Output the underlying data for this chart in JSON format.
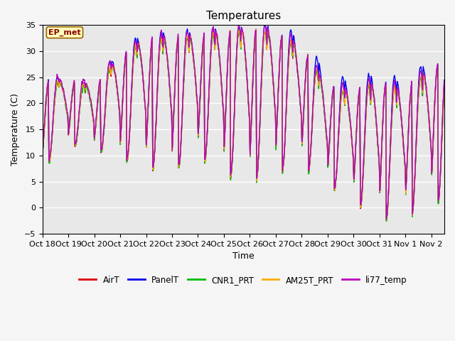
{
  "title": "Temperatures",
  "xlabel": "Time",
  "ylabel": "Temperature (C)",
  "ylim": [
    -5,
    35
  ],
  "yticks": [
    -5,
    0,
    5,
    10,
    15,
    20,
    25,
    30,
    35
  ],
  "xtick_labels": [
    "Oct 18",
    "Oct 19",
    "Oct 20",
    "Oct 21",
    "Oct 22",
    "Oct 23",
    "Oct 24",
    "Oct 25",
    "Oct 26",
    "Oct 27",
    "Oct 28",
    "Oct 29",
    "Oct 30",
    "Oct 31",
    "Nov 1",
    "Nov 2"
  ],
  "annotation": "EP_met",
  "colors": {
    "AirT": "#dd0000",
    "PanelT": "#0000ee",
    "CNR1_PRT": "#00bb00",
    "AM25T_PRT": "#ffaa00",
    "li77_temp": "#bb00bb"
  },
  "background_color": "#e8e8e8",
  "title_fontsize": 11,
  "axis_label_fontsize": 9,
  "tick_fontsize": 8,
  "line_width": 1.0,
  "day_peaks": [
    24.0,
    24.0,
    23.0,
    29.0,
    32.0,
    32.5,
    32.5,
    33.5,
    34.0,
    33.5,
    30.5,
    23.0,
    22.0,
    24.0,
    22.0,
    27.0
  ],
  "day_troughs": [
    7.5,
    12.0,
    11.0,
    9.0,
    7.5,
    6.5,
    9.5,
    6.0,
    4.5,
    6.5,
    7.5,
    4.0,
    0.5,
    -3.0,
    -2.5,
    0.5
  ],
  "panel_extra_day": [
    1.5,
    0.5,
    0.5,
    2.0,
    1.5,
    1.5,
    1.5,
    1.5,
    0.5,
    2.0,
    2.5,
    3.0,
    2.5,
    2.5,
    2.5,
    2.0
  ]
}
